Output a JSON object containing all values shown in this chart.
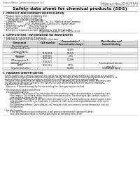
{
  "header_left": "Product Name: Lithium Ion Battery Cell",
  "header_right1": "Substance number: SPX2937M3-8.0",
  "header_right2": "Established / Revision: Dec.1 2010",
  "title": "Safety data sheet for chemical products (SDS)",
  "section1_title": "1. PRODUCT AND COMPANY IDENTIFICATION",
  "section1_lines": [
    "  • Product name: Lithium Ion Battery Cell",
    "  • Product code: Cylindrical-type cell",
    "       (IFR18500, IFR18650, IFR18650A)",
    "  • Company name:        Sanyo Electric Co., Ltd., Mobile Energy Company",
    "  • Address:              2001  Kamimacken, Sumoto-City, Hyogo, Japan",
    "  • Telephone number:   +81-799-26-4111",
    "  • Fax number:           +81-799-26-4129",
    "  • Emergency telephone number (Weekdays): +81-799-26-3642",
    "                                                    (Night and holiday): +81-799-26-4109"
  ],
  "section2_title": "2. COMPOSITION / INFORMATION ON INGREDIENTS",
  "section2_intro": "  • Substance or preparation: Preparation",
  "section2_sub": "  • Information about the chemical nature of product:",
  "table_col_header": "Component",
  "table_col2_header": "CAS number",
  "table_col3_header": "Concentration /\nConcentration range",
  "table_col4_header": "Classification and\nhazard labeling",
  "table_sub_header": "Chemical name",
  "table_rows": [
    [
      "Lithium cobalt oxide\n(LiMn2Co(PbO4))",
      "-",
      "30-60%",
      "-"
    ],
    [
      "Iron",
      "7439-89-6",
      "15-25%",
      "-"
    ],
    [
      "Aluminum",
      "7429-90-5",
      "2-6%",
      "-"
    ],
    [
      "Graphite\n(Mixed graphite-1)\n(Artificial graphite-1)",
      "7782-42-5\n7782-42-5",
      "10-20%",
      "-"
    ],
    [
      "Copper",
      "7440-50-8",
      "5-15%",
      "Sensitization of the skin\ngroup No.2"
    ],
    [
      "Organic electrolyte",
      "-",
      "10-20%",
      "Inflammable liquid"
    ]
  ],
  "row_heights": [
    6.5,
    3.5,
    3.5,
    8,
    6,
    3.5
  ],
  "section3_title": "3. HAZARDS IDENTIFICATION",
  "section3_lines": [
    "   For the battery cell, chemical materials are stored in a hermetically sealed metal case, designed to withstand",
    "   temperatures and physical conditions-environment during normal use. As a result, during normal use, there is no",
    "   physical danger of ignition or explosion and there is no danger of hazardous materials leakage.",
    "      However, if exposed to a fire added mechanical shocks, decomposed, wires/alarms where tiny mass uses.",
    "   The gas toxins cannot be operated. The battery cell case will be breached of fire patterns. Hazardous",
    "   materials may be released.",
    "      Moreover, if heated strongly by the surrounding fire, toxic gas may be emitted.",
    "",
    "  • Most important hazard and effects:",
    "      Human health effects:",
    "            Inhalation: The release of the electrolyte has an anesthesia action and stimulates a respiratory tract.",
    "            Skin contact: The release of the electrolyte stimulates a skin. The electrolyte skin contact causes a",
    "            sore and stimulation on the skin.",
    "            Eye contact: The release of the electrolyte stimulates eyes. The electrolyte eye contact causes a sore",
    "            and stimulation on the eye. Especially, a substance that causes a strong inflammation of the eye is",
    "            contained.",
    "            Environmental effects: Since a battery cell remains in the environment, do not throw out it into the",
    "            environment.",
    "",
    "  • Specific hazards:",
    "            If the electrolyte contacts with water, it will generate detrimental hydrogen fluoride.",
    "            Since the lead-electrolyte is inflammable liquid, do not bring close to fire."
  ],
  "bg_color": "#ffffff",
  "text_color": "#111111",
  "gray_text": "#555555",
  "line_color": "#aaaaaa",
  "table_border": "#999999",
  "table_header_bg": "#d8d8d8",
  "table_row_bg1": "#ffffff",
  "table_row_bg2": "#f0f0f0"
}
